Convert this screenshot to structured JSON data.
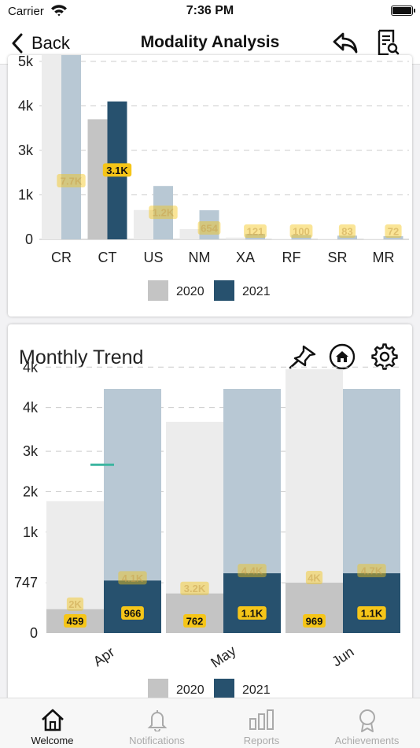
{
  "status_bar": {
    "carrier": "Carrier",
    "time": "7:36 PM"
  },
  "nav": {
    "back_label": "Back",
    "title": "Modality Analysis"
  },
  "colors": {
    "color_2020": "#c4c4c4",
    "color_2021": "#27516e",
    "label_bg": "#f5c518",
    "faded_2021": "#b8c8d4",
    "faded_2020": "#ececec",
    "target_line": "#3cb5a0"
  },
  "chart_data": [
    {
      "type": "bar",
      "title": "",
      "categories": [
        "CR",
        "CT",
        "US",
        "NM",
        "XA",
        "RF",
        "SR",
        "MR"
      ],
      "yticks": [
        "0",
        "1k",
        "3k",
        "4k",
        "5k"
      ],
      "series": [
        {
          "name": "2020",
          "values": [
            null,
            2700,
            660,
            230,
            40,
            10,
            10,
            10
          ]
        },
        {
          "name": "2021",
          "values": [
            7700,
            3100,
            1200,
            654,
            121,
            100,
            83,
            72
          ]
        }
      ],
      "value_labels": [
        "7.7K",
        "3.1K",
        "1.2K",
        "654",
        "121",
        "100",
        "83",
        "72"
      ],
      "highlighted": "CT",
      "legend": [
        "2020",
        "2021"
      ],
      "legend_position": "bottom"
    },
    {
      "type": "bar",
      "title": "Monthly Trend",
      "categories": [
        "Apr",
        "May",
        "Jun"
      ],
      "yticks": [
        "0",
        "747",
        "1k",
        "2k",
        "3k",
        "4k",
        "4k"
      ],
      "target_value": 2500,
      "series": [
        {
          "name": "2020",
          "values": [
            459,
            762,
            969
          ],
          "totals": [
            2000,
            3200,
            4000
          ],
          "total_labels": [
            "2K",
            "3.2K",
            "4K"
          ]
        },
        {
          "name": "2021",
          "values": [
            966,
            1100,
            1100
          ],
          "value_labels": [
            "966",
            "1.1K",
            "1.1K"
          ],
          "totals": [
            4100,
            4400,
            4700
          ],
          "total_labels": [
            "4.1K",
            "4.4K",
            "4.7K"
          ]
        }
      ],
      "value_labels_2020": [
        "459",
        "762",
        "969"
      ],
      "legend": [
        "2020",
        "2021"
      ],
      "legend_position": "bottom"
    }
  ],
  "tabs": [
    {
      "label": "Welcome",
      "icon": "home-icon",
      "active": true
    },
    {
      "label": "Notifications",
      "icon": "bell-icon",
      "active": false
    },
    {
      "label": "Reports",
      "icon": "bar-chart-icon",
      "active": false
    },
    {
      "label": "Achievements",
      "icon": "award-icon",
      "active": false
    }
  ]
}
